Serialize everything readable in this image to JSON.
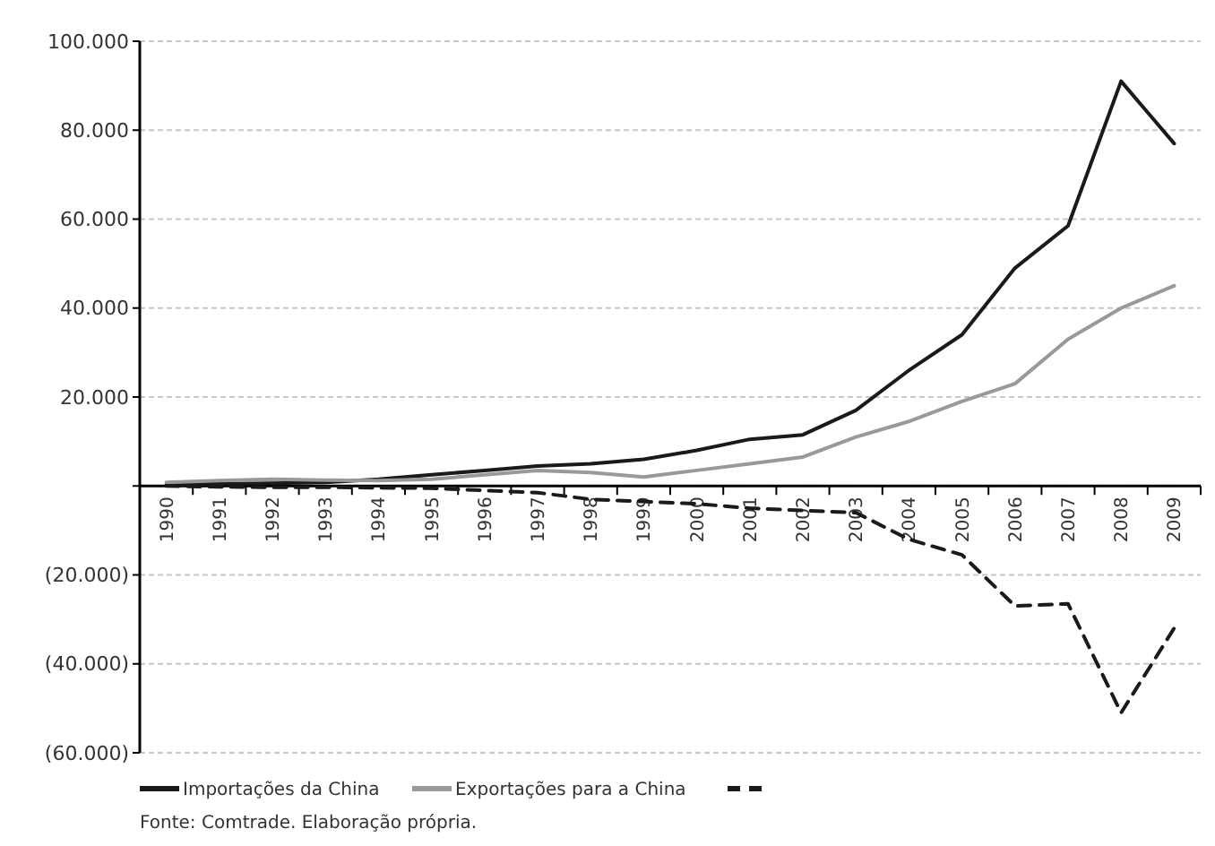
{
  "chart_data": {
    "type": "line",
    "categories": [
      "1990",
      "1991",
      "1992",
      "1993",
      "1994",
      "1995",
      "1996",
      "1997",
      "1998",
      "1999",
      "2000",
      "2001",
      "2002",
      "2003",
      "2004",
      "2005",
      "2006",
      "2007",
      "2008",
      "2009"
    ],
    "series": [
      {
        "name": "Importações da China",
        "color": "#1a1a1a",
        "values": [
          300,
          500,
          600,
          800,
          1500,
          2500,
          3500,
          4500,
          5000,
          6000,
          8000,
          10500,
          11500,
          17000,
          26000,
          34000,
          49000,
          58500,
          91000,
          77000
        ]
      },
      {
        "name": "Exportações para a China",
        "color": "#999999",
        "values": [
          800,
          1200,
          1500,
          1300,
          1200,
          1500,
          2500,
          3500,
          3000,
          2000,
          3500,
          5000,
          6500,
          11000,
          14500,
          19000,
          23000,
          33000,
          40000,
          45000
        ]
      },
      {
        "color": "#1a1a1a",
        "line_style": "dashed",
        "values": [
          0,
          -200,
          -300,
          -300,
          -400,
          -500,
          -1000,
          -1500,
          -3000,
          -3500,
          -4000,
          -5000,
          -5500,
          -6000,
          -12000,
          -15500,
          -27000,
          -26500,
          -51000,
          -32000
        ]
      }
    ],
    "ylim": [
      -60000,
      100000
    ],
    "yticks": [
      {
        "value": -60000,
        "label": "(60.000)"
      },
      {
        "value": -40000,
        "label": "(40.000)"
      },
      {
        "value": -20000,
        "label": "(20.000)"
      },
      {
        "value": 0,
        "label": null
      },
      {
        "value": 20000,
        "label": "20.000"
      },
      {
        "value": 40000,
        "label": "40.000"
      },
      {
        "value": 60000,
        "label": "60.000"
      },
      {
        "value": 80000,
        "label": "80.000"
      },
      {
        "value": 100000,
        "label": "100.000"
      }
    ],
    "grid": "y",
    "legend": "bottom",
    "marker": "none",
    "line_style": "solid",
    "annotations": [
      "Fonte: Comtrade. Elaboração própria."
    ]
  }
}
